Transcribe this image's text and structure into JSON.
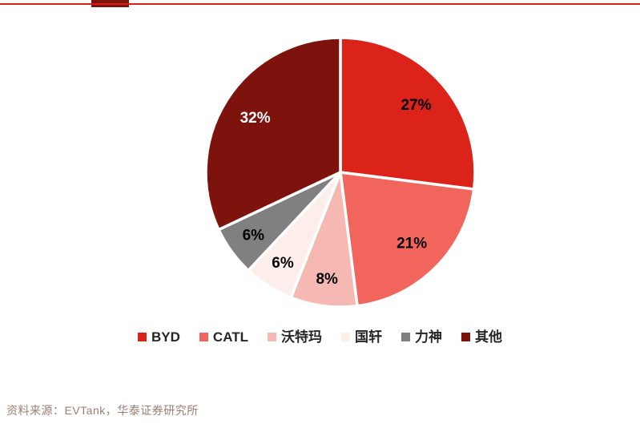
{
  "page": {
    "source_note": "资料来源：EVTank，华泰证券研究所",
    "source_note_color": "#9b7d74",
    "accent_line_color": "#d42015",
    "title_marker_color": "#7e120c"
  },
  "chart_data": {
    "type": "pie",
    "title": "",
    "categories": [
      "BYD",
      "CATL",
      "沃特玛",
      "国轩",
      "力神",
      "其他"
    ],
    "values": [
      27,
      21,
      8,
      6,
      6,
      32
    ],
    "labels": [
      "27%",
      "21%",
      "8%",
      "6%",
      "6%",
      "32%"
    ],
    "colors": [
      "#dc231a",
      "#f2655c",
      "#f5b8b3",
      "#fdeeec",
      "#808080",
      "#7e120c"
    ],
    "label_colors": [
      "#000000",
      "#000000",
      "#000000",
      "#000000",
      "#000000",
      "#ffffff"
    ],
    "slugs": [
      "byd",
      "catl",
      "watma",
      "guoxuan",
      "lishen",
      "other"
    ],
    "start_angle_deg": 0,
    "direction": "clockwise",
    "slice_border_color": "#ffffff",
    "legend_position": "bottom"
  }
}
